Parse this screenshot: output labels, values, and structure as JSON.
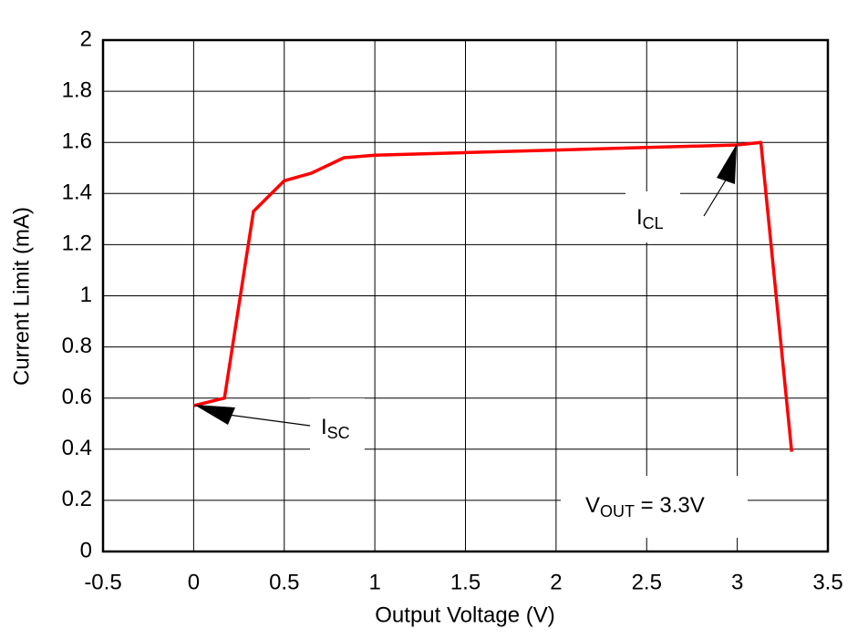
{
  "chart_data": {
    "type": "line",
    "x_label": "Output Voltage (V)",
    "y_label": "Current Limit (mA)",
    "x": [
      0,
      0.17,
      0.33,
      0.5,
      0.65,
      0.83,
      1,
      1.5,
      2,
      2.5,
      3,
      3.13,
      3.3
    ],
    "series": [
      {
        "color": "#ff0000",
        "values": [
          0.57,
          0.6,
          1.33,
          1.45,
          1.48,
          1.54,
          1.55,
          1.56,
          1.57,
          1.58,
          1.59,
          1.6,
          0.39
        ]
      }
    ],
    "xlim": [
      -0.5,
      3.5
    ],
    "xticks": [
      -0.5,
      0,
      0.5,
      1,
      1.5,
      2,
      2.5,
      3,
      3.5
    ],
    "ylim": [
      0,
      2
    ],
    "yticks": [
      0,
      0.2,
      0.4,
      0.6,
      0.8,
      1,
      1.2,
      1.4,
      1.6,
      1.8,
      2
    ],
    "grid": true,
    "annotations": [
      {
        "text": "I",
        "subscript": "SC"
      },
      {
        "text": "I",
        "subscript": "CL"
      },
      {
        "text": "V",
        "subscript": "OUT",
        "suffix": " = 3.3V"
      }
    ]
  }
}
